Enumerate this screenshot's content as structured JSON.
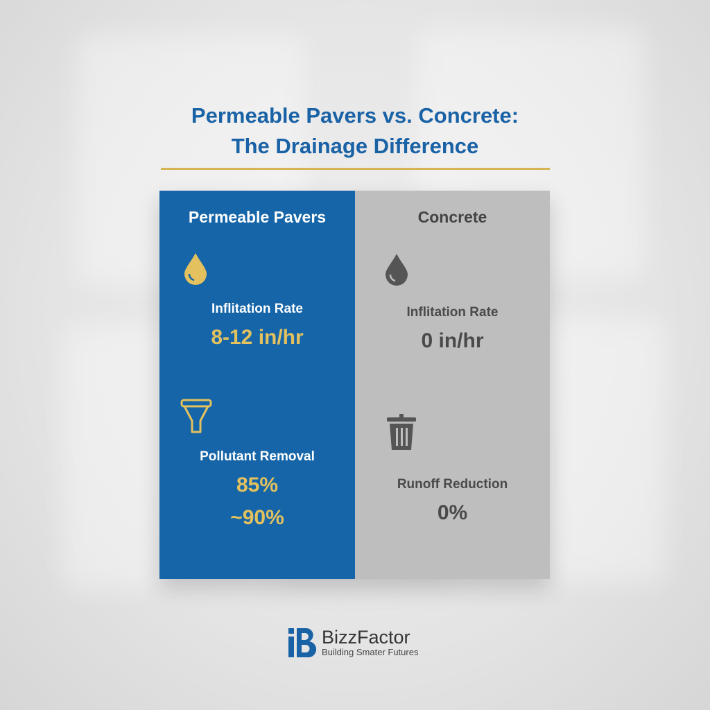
{
  "title": {
    "line1": "Permeable Pavers vs. Concrete:",
    "line2": "The Drainage Difference"
  },
  "colors": {
    "title": "#1a62a6",
    "rule": "#d6b453",
    "left_bg": "#1565a8",
    "right_bg": "#bebebe",
    "accent": "#e3c15e",
    "gray_text": "#4a4a4a"
  },
  "left": {
    "heading": "Permeable Pavers",
    "items": [
      {
        "icon": "water-drop-icon",
        "label": "Inflitation Rate",
        "value": "8-12 in/hr"
      },
      {
        "icon": "filter-funnel-icon",
        "label": "Pollutant Removal",
        "value": "85%",
        "value2": "~90%"
      }
    ]
  },
  "right": {
    "heading": "Concrete",
    "items": [
      {
        "icon": "water-drop-icon",
        "label": "Inflitation Rate",
        "value": "0 in/hr"
      },
      {
        "icon": "trash-can-icon",
        "label": "Runoff Reduction",
        "value": "0%"
      }
    ]
  },
  "footer": {
    "brand": "BizzFactor",
    "tagline": "Building Smater Futures"
  }
}
